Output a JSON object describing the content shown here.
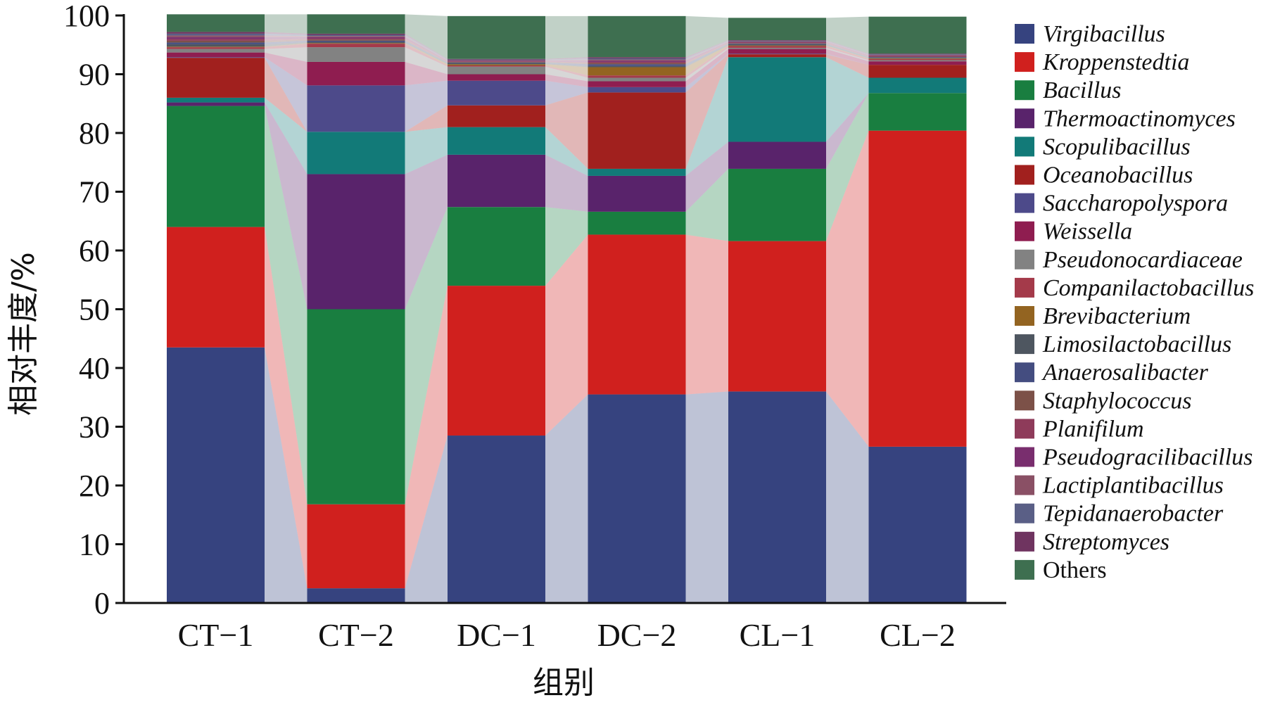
{
  "chart_data": {
    "type": "bar",
    "stacked": true,
    "normalized_percent": true,
    "flow_bands_between_bars": true,
    "xlabel": "组别",
    "ylabel": "相对丰度/%",
    "ylim": [
      0,
      100
    ],
    "yticks": [
      0,
      10,
      20,
      30,
      40,
      50,
      60,
      70,
      80,
      90,
      100
    ],
    "grid": false,
    "legend_position": "right",
    "categories": [
      "CT−1",
      "CT−2",
      "DC−1",
      "DC−2",
      "CL−1",
      "CL−2"
    ],
    "series": [
      {
        "name": "Virgibacillus",
        "italic": true,
        "color": "#36437F",
        "values": [
          43.5,
          2.5,
          28.5,
          35.5,
          36.0,
          26.6
        ]
      },
      {
        "name": "Kroppenstedtia",
        "italic": true,
        "color": "#D0201E",
        "values": [
          20.5,
          14.3,
          25.5,
          27.2,
          25.6,
          53.8
        ]
      },
      {
        "name": "Bacillus",
        "italic": true,
        "color": "#197E40",
        "values": [
          20.6,
          33.2,
          13.4,
          3.9,
          12.3,
          6.4
        ]
      },
      {
        "name": "Thermoactinomyces",
        "italic": true,
        "color": "#59236B",
        "values": [
          0.6,
          23.0,
          8.9,
          6.1,
          4.6,
          0.0
        ]
      },
      {
        "name": "Scopulibacillus",
        "italic": true,
        "color": "#127A78",
        "values": [
          0.8,
          7.2,
          4.7,
          1.2,
          14.4,
          2.6
        ]
      },
      {
        "name": "Oceanobacillus",
        "italic": true,
        "color": "#A1201E",
        "values": [
          6.8,
          0.0,
          3.7,
          13.0,
          0.5,
          2.2
        ]
      },
      {
        "name": "Saccharopolyspora",
        "italic": true,
        "color": "#4D4A8A",
        "values": [
          0.1,
          7.9,
          4.2,
          0.9,
          0.1,
          0.0
        ]
      },
      {
        "name": "Weissella",
        "italic": true,
        "color": "#8F1D50",
        "values": [
          0.8,
          4.0,
          1.1,
          1.0,
          0.8,
          0.6
        ]
      },
      {
        "name": "Pseudonocardiaceae",
        "italic": true,
        "color": "#828282",
        "values": [
          0.6,
          2.5,
          1.3,
          0.6,
          0.2,
          0.2
        ]
      },
      {
        "name": "Companilactobacillus",
        "italic": true,
        "color": "#A43A4A",
        "values": [
          0.3,
          0.6,
          0.2,
          0.4,
          0.3,
          0.2
        ]
      },
      {
        "name": "Brevibacterium",
        "italic": true,
        "color": "#936421",
        "values": [
          0.1,
          0.1,
          0.2,
          1.4,
          0.1,
          0.1
        ]
      },
      {
        "name": "Limosilactobacillus",
        "italic": true,
        "color": "#4E5660",
        "values": [
          0.4,
          0.2,
          0.2,
          0.2,
          0.2,
          0.1
        ]
      },
      {
        "name": "Anaerosalibacter",
        "italic": true,
        "color": "#444D80",
        "values": [
          0.3,
          0.2,
          0.1,
          0.3,
          0.1,
          0.1
        ]
      },
      {
        "name": "Staphylococcus",
        "italic": true,
        "color": "#7C5148",
        "values": [
          0.3,
          0.2,
          0.1,
          0.2,
          0.1,
          0.1
        ]
      },
      {
        "name": "Planifilum",
        "italic": true,
        "color": "#8E3B5A",
        "values": [
          0.3,
          0.2,
          0.1,
          0.2,
          0.1,
          0.1
        ]
      },
      {
        "name": "Pseudogracilibacillus",
        "italic": true,
        "color": "#792E6E",
        "values": [
          0.3,
          0.2,
          0.1,
          0.2,
          0.1,
          0.1
        ]
      },
      {
        "name": "Lactiplantibacillus",
        "italic": true,
        "color": "#8A5065",
        "values": [
          0.3,
          0.2,
          0.1,
          0.2,
          0.1,
          0.1
        ]
      },
      {
        "name": "Tepidanaerobacter",
        "italic": true,
        "color": "#5A5F86",
        "values": [
          0.3,
          0.2,
          0.1,
          0.2,
          0.1,
          0.1
        ]
      },
      {
        "name": "Streptomyces",
        "italic": true,
        "color": "#6F3460",
        "values": [
          0.3,
          0.2,
          0.1,
          0.2,
          0.1,
          0.1
        ]
      },
      {
        "name": "Others",
        "italic": false,
        "color": "#3E6F50",
        "values": [
          3.0,
          3.3,
          7.3,
          7.0,
          3.8,
          6.3
        ]
      }
    ]
  }
}
